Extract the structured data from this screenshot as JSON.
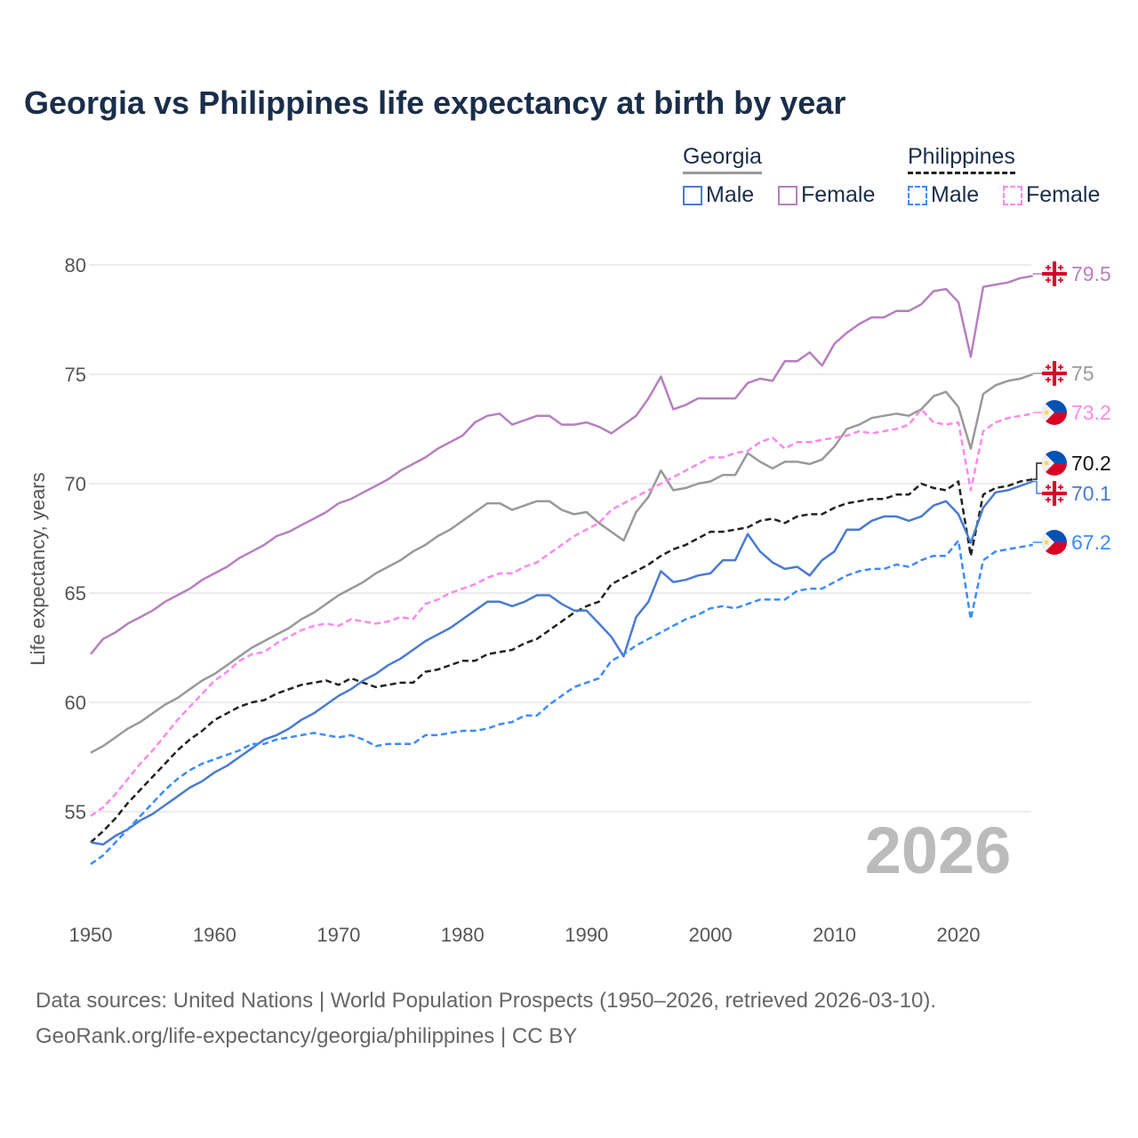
{
  "title": "Georgia vs Philippines life expectancy at birth by year",
  "legend": {
    "georgia": {
      "label": "Georgia",
      "male": "Male",
      "female": "Female"
    },
    "philippines": {
      "label": "Philippines",
      "male": "Male",
      "female": "Female"
    }
  },
  "year_watermark": "2026",
  "source": {
    "line1": "Data sources: United Nations | World Population Prospects (1950–2026, retrieved 2026-03-10).",
    "line2": "GeoRank.org/life-expectancy/georgia/philippines | CC BY"
  },
  "colors": {
    "georgia_total": "#999999",
    "georgia_male": "#4a7bd0",
    "georgia_female": "#b77fc0",
    "ph_total": "#222222",
    "ph_male": "#3b8cff",
    "ph_female": "#ff88ee"
  },
  "chart_data": {
    "type": "line",
    "title": "Georgia vs Philippines life expectancy at birth by year",
    "xlabel": "",
    "ylabel": "Life expectancy, years",
    "xlim": [
      1950,
      2026
    ],
    "ylim": [
      51,
      82
    ],
    "xticks": [
      1950,
      1960,
      1970,
      1980,
      1990,
      2000,
      2010,
      2020
    ],
    "yticks": [
      55,
      60,
      65,
      70,
      75,
      80
    ],
    "grid": true,
    "x_start": 1950,
    "series": [
      {
        "key": "georgia_female",
        "name": "Georgia Female",
        "dashed": false,
        "end_label": "79.5",
        "flag": "georgia",
        "values": [
          62.2,
          62.9,
          63.2,
          63.6,
          63.9,
          64.2,
          64.6,
          64.9,
          65.2,
          65.6,
          65.9,
          66.2,
          66.6,
          66.9,
          67.2,
          67.6,
          67.8,
          68.1,
          68.4,
          68.7,
          69.1,
          69.3,
          69.6,
          69.9,
          70.2,
          70.6,
          70.9,
          71.2,
          71.6,
          71.9,
          72.2,
          72.8,
          73.1,
          73.2,
          72.7,
          72.9,
          73.1,
          73.1,
          72.7,
          72.7,
          72.8,
          72.6,
          72.3,
          72.7,
          73.1,
          73.9,
          74.9,
          73.4,
          73.6,
          73.9,
          73.9,
          73.9,
          73.9,
          74.6,
          74.8,
          74.7,
          75.6,
          75.6,
          76.0,
          75.4,
          76.4,
          76.9,
          77.3,
          77.6,
          77.6,
          77.9,
          77.9,
          78.2,
          78.8,
          78.9,
          78.3,
          75.8,
          79.0,
          79.1,
          79.2,
          79.4,
          79.5
        ]
      },
      {
        "key": "georgia_total",
        "name": "Georgia",
        "dashed": false,
        "end_label": "75",
        "flag": "georgia",
        "values": [
          57.7,
          58.0,
          58.4,
          58.8,
          59.1,
          59.5,
          59.9,
          60.2,
          60.6,
          61.0,
          61.3,
          61.7,
          62.1,
          62.5,
          62.8,
          63.1,
          63.4,
          63.8,
          64.1,
          64.5,
          64.9,
          65.2,
          65.5,
          65.9,
          66.2,
          66.5,
          66.9,
          67.2,
          67.6,
          67.9,
          68.3,
          68.7,
          69.1,
          69.1,
          68.8,
          69.0,
          69.2,
          69.2,
          68.8,
          68.6,
          68.7,
          68.2,
          67.8,
          67.4,
          68.7,
          69.4,
          70.6,
          69.7,
          69.8,
          70.0,
          70.1,
          70.4,
          70.4,
          71.4,
          71.0,
          70.7,
          71.0,
          71.0,
          70.9,
          71.1,
          71.7,
          72.5,
          72.7,
          73.0,
          73.1,
          73.2,
          73.1,
          73.4,
          74.0,
          74.2,
          73.5,
          71.6,
          74.1,
          74.5,
          74.7,
          74.8,
          75.0
        ]
      },
      {
        "key": "ph_female",
        "name": "Philippines Female",
        "dashed": true,
        "end_label": "73.2",
        "flag": "philippines",
        "values": [
          54.8,
          55.2,
          55.8,
          56.5,
          57.2,
          57.8,
          58.5,
          59.2,
          59.8,
          60.4,
          61.0,
          61.4,
          61.9,
          62.2,
          62.3,
          62.7,
          63.0,
          63.3,
          63.5,
          63.6,
          63.5,
          63.8,
          63.7,
          63.6,
          63.7,
          63.9,
          63.8,
          64.5,
          64.7,
          65.0,
          65.2,
          65.4,
          65.7,
          65.9,
          65.9,
          66.2,
          66.4,
          66.8,
          67.2,
          67.6,
          67.9,
          68.2,
          68.8,
          69.1,
          69.4,
          69.7,
          70.0,
          70.3,
          70.6,
          70.9,
          71.2,
          71.2,
          71.4,
          71.5,
          71.9,
          72.1,
          71.6,
          71.9,
          71.9,
          72.0,
          72.1,
          72.2,
          72.4,
          72.3,
          72.4,
          72.5,
          72.7,
          73.4,
          72.8,
          72.7,
          72.8,
          69.7,
          72.4,
          72.8,
          73.0,
          73.1,
          73.2
        ]
      },
      {
        "key": "ph_total",
        "name": "Philippines",
        "dashed": true,
        "end_label": "70.2",
        "flag": "philippines",
        "values": [
          53.6,
          54.1,
          54.7,
          55.4,
          56.0,
          56.6,
          57.2,
          57.8,
          58.3,
          58.7,
          59.2,
          59.5,
          59.8,
          60.0,
          60.1,
          60.4,
          60.6,
          60.8,
          60.9,
          61.0,
          60.8,
          61.1,
          60.9,
          60.7,
          60.8,
          60.9,
          60.9,
          61.4,
          61.5,
          61.7,
          61.9,
          61.9,
          62.2,
          62.3,
          62.4,
          62.7,
          62.9,
          63.3,
          63.7,
          64.1,
          64.4,
          64.6,
          65.4,
          65.7,
          66.0,
          66.3,
          66.7,
          67.0,
          67.2,
          67.5,
          67.8,
          67.8,
          67.9,
          68.0,
          68.3,
          68.4,
          68.2,
          68.5,
          68.6,
          68.6,
          68.9,
          69.1,
          69.2,
          69.3,
          69.3,
          69.5,
          69.5,
          70.0,
          69.8,
          69.7,
          70.1,
          66.7,
          69.5,
          69.8,
          69.9,
          70.1,
          70.2
        ]
      },
      {
        "key": "georgia_male",
        "name": "Georgia Male",
        "dashed": false,
        "end_label": "70.1",
        "flag": "georgia",
        "values": [
          53.6,
          53.5,
          53.9,
          54.2,
          54.6,
          54.9,
          55.3,
          55.7,
          56.1,
          56.4,
          56.8,
          57.1,
          57.5,
          57.9,
          58.3,
          58.5,
          58.8,
          59.2,
          59.5,
          59.9,
          60.3,
          60.6,
          61.0,
          61.3,
          61.7,
          62.0,
          62.4,
          62.8,
          63.1,
          63.4,
          63.8,
          64.2,
          64.6,
          64.6,
          64.4,
          64.6,
          64.9,
          64.9,
          64.5,
          64.2,
          64.2,
          63.6,
          63.0,
          62.1,
          63.9,
          64.6,
          66.0,
          65.5,
          65.6,
          65.8,
          65.9,
          66.5,
          66.5,
          67.7,
          66.9,
          66.4,
          66.1,
          66.2,
          65.8,
          66.5,
          66.9,
          67.9,
          67.9,
          68.3,
          68.5,
          68.5,
          68.3,
          68.5,
          69.0,
          69.2,
          68.6,
          67.3,
          68.9,
          69.6,
          69.7,
          69.9,
          70.1
        ]
      },
      {
        "key": "ph_male",
        "name": "Philippines Male",
        "dashed": true,
        "end_label": "67.2",
        "flag": "philippines",
        "values": [
          52.6,
          53.0,
          53.6,
          54.2,
          54.8,
          55.4,
          56.0,
          56.5,
          56.9,
          57.2,
          57.4,
          57.6,
          57.8,
          58.1,
          58.1,
          58.3,
          58.4,
          58.5,
          58.6,
          58.5,
          58.4,
          58.5,
          58.3,
          58.0,
          58.1,
          58.1,
          58.1,
          58.5,
          58.5,
          58.6,
          58.7,
          58.7,
          58.8,
          59.0,
          59.1,
          59.4,
          59.4,
          59.9,
          60.3,
          60.7,
          60.9,
          61.1,
          61.9,
          62.2,
          62.6,
          62.9,
          63.2,
          63.5,
          63.8,
          64.0,
          64.3,
          64.4,
          64.3,
          64.5,
          64.7,
          64.7,
          64.7,
          65.1,
          65.2,
          65.2,
          65.5,
          65.8,
          66.0,
          66.1,
          66.1,
          66.3,
          66.2,
          66.5,
          66.7,
          66.7,
          67.4,
          63.8,
          66.5,
          66.9,
          67.0,
          67.1,
          67.2
        ]
      }
    ]
  }
}
